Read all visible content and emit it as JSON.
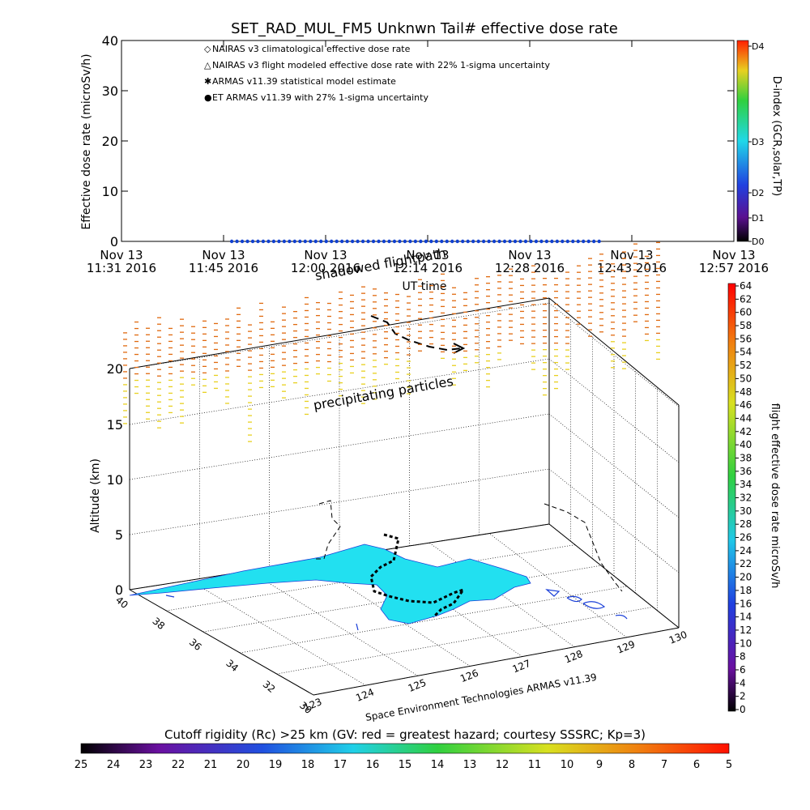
{
  "title": "SET_RAD_MUL_FM5 Unknwn Tail#  effective dose rate",
  "top_chart": {
    "type": "scatter",
    "ylabel": "Effective dose rate (microSv/h)",
    "xlabel": "UT time",
    "ylim": [
      0,
      40
    ],
    "yticks": [
      "0",
      "10",
      "20",
      "30",
      "40"
    ],
    "xticks": [
      {
        "date": "Nov 13",
        "time": "11:31 2016"
      },
      {
        "date": "Nov 13",
        "time": "11:45 2016"
      },
      {
        "date": "Nov 13",
        "time": "12:00 2016"
      },
      {
        "date": "Nov 13",
        "time": "12:14 2016"
      },
      {
        "date": "Nov 13",
        "time": "12:28 2016"
      },
      {
        "date": "Nov 13",
        "time": "12:43 2016"
      },
      {
        "date": "Nov 13",
        "time": "12:57 2016"
      }
    ],
    "legend": [
      {
        "symbol": "◇",
        "color": "#e06040",
        "label": "NAIRAS v3 climatological effective dose rate"
      },
      {
        "symbol": "△",
        "color": "#000000",
        "label": "NAIRAS v3 flight modeled effective dose rate with 22% 1-sigma uncertainty"
      },
      {
        "symbol": "✱",
        "color": "#33cc33",
        "label": "ARMAS v11.39 statistical model estimate"
      },
      {
        "symbol": "●",
        "color": "#1040d0",
        "label": "ET ARMAS v11.39 with 27% 1-sigma uncertainty"
      }
    ],
    "series_note_x_range": [
      0.18,
      0.78
    ],
    "series_value": 0
  },
  "dindex_bar": {
    "label": "D-index (GCR,solar,TP)",
    "ticks": [
      "D0",
      "D1",
      "D2",
      "D3",
      "D4"
    ]
  },
  "dose_bar": {
    "label": "flight effective dose rate microSv/h",
    "ticks": [
      "0",
      "2",
      "4",
      "6",
      "8",
      "10",
      "12",
      "14",
      "16",
      "18",
      "20",
      "22",
      "24",
      "26",
      "28",
      "30",
      "32",
      "34",
      "36",
      "38",
      "40",
      "42",
      "44",
      "46",
      "48",
      "50",
      "52",
      "54",
      "56",
      "58",
      "60",
      "62",
      "64"
    ]
  },
  "map3d": {
    "zlabel": "Altitude (km)",
    "zticks": [
      "0",
      "5",
      "10",
      "15",
      "20"
    ],
    "lat_ticks": [
      "40",
      "38",
      "36",
      "34",
      "32",
      "30"
    ],
    "lon_ticks": [
      "123",
      "124",
      "125",
      "126",
      "127",
      "128",
      "129",
      "130"
    ],
    "annotations": {
      "shadow": "shadowed flightpath",
      "precip": "precipitating particles",
      "credit": "Space Environment Technologies ARMAS v11.39"
    }
  },
  "rc_bar": {
    "label": "Cutoff rigidity (Rc) >25 km (GV: red = greatest hazard; courtesy SSSRC; Kp=3)",
    "ticks": [
      "25",
      "24",
      "23",
      "22",
      "21",
      "20",
      "19",
      "18",
      "17",
      "16",
      "15",
      "14",
      "13",
      "12",
      "11",
      "10",
      "9",
      "8",
      "7",
      "6",
      "5"
    ]
  },
  "colors": {
    "land": "#22e0f0",
    "coast": "#1a3fd8",
    "precip_high": "#e06a10",
    "precip_low": "#e8d020"
  }
}
